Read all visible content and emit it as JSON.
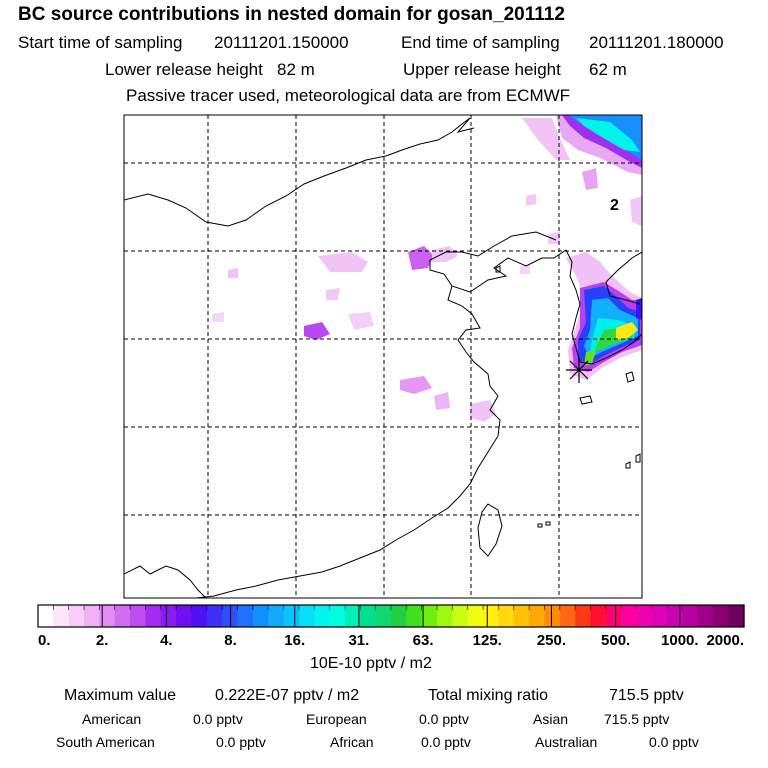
{
  "header": {
    "title": "BC  source contributions in nested domain for gosan_201112",
    "start_label": "Start time of sampling",
    "start_value": "20111201.150000",
    "end_label": "End time of sampling",
    "end_value": "20111201.180000",
    "lower_label": "Lower release height",
    "lower_value": "82 m",
    "upper_label": "Upper release height",
    "upper_value": "62 m",
    "tracer_note": "Passive tracer used, meteorological data are from ECMWF"
  },
  "chart_data": {
    "type": "heatmap",
    "map_label": "2",
    "colorbar": {
      "tick_labels": [
        "0.",
        "2.",
        "4.",
        "8.",
        "16.",
        "31.",
        "63.",
        "125.",
        "250.",
        "500.",
        "1000.",
        "2000."
      ],
      "colors": [
        "#ffffff",
        "#fde6fd",
        "#f9ccf9",
        "#f2b0f6",
        "#e48cf2",
        "#d26cf0",
        "#be4cf0",
        "#a42cf2",
        "#8c1cf0",
        "#6f10f0",
        "#5010f4",
        "#3c30f8",
        "#2c50fa",
        "#2070fa",
        "#1090fc",
        "#10aafc",
        "#08c4fc",
        "#08e0f8",
        "#00f4f0",
        "#00ffe0",
        "#00f0b8",
        "#00e090",
        "#10d870",
        "#20d040",
        "#40e020",
        "#70ee10",
        "#a0f810",
        "#c8fc10",
        "#f0fc10",
        "#fff010",
        "#ffd810",
        "#ffc008",
        "#ffa808",
        "#ff8c08",
        "#ff6810",
        "#ff3818",
        "#ff1030",
        "#ff0070",
        "#ff00a0",
        "#f200b0",
        "#e000b8",
        "#cc00b4",
        "#b8009c",
        "#a00088",
        "#8a0074",
        "#700060"
      ],
      "unit": "10E-10 pptv / m2"
    }
  },
  "summary": {
    "max_label": "Maximum value",
    "max_value": "0.222E-07 pptv / m2",
    "total_label": "Total mixing ratio",
    "total_value": "715.5 pptv",
    "regions": [
      {
        "name": "American",
        "value": "0.0 pptv"
      },
      {
        "name": "European",
        "value": "0.0 pptv"
      },
      {
        "name": "Asian",
        "value": "715.5 pptv"
      },
      {
        "name": "South American",
        "value": "0.0 pptv"
      },
      {
        "name": "African",
        "value": "0.0 pptv"
      },
      {
        "name": "Australian",
        "value": "0.0 pptv"
      }
    ]
  }
}
